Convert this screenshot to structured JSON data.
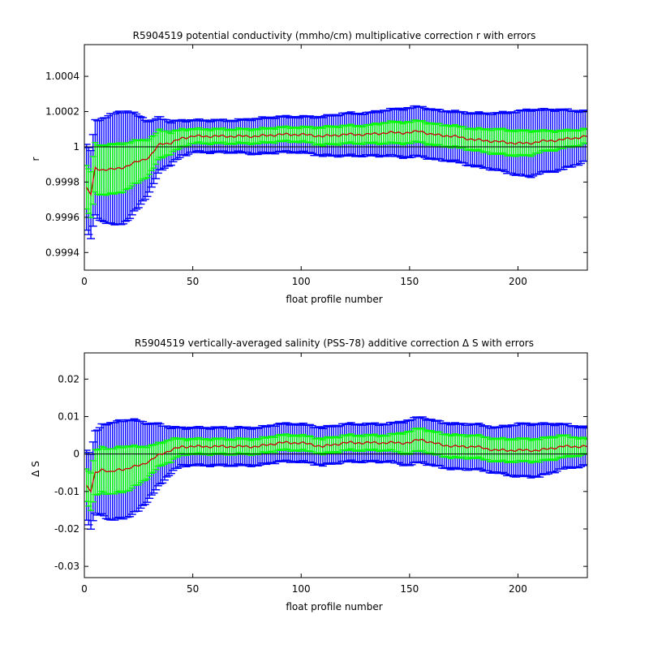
{
  "chart_data": [
    {
      "type": "line",
      "title": "R5904519 potential conductivity (mmho/cm) multiplicative correction r with errors",
      "xlabel": "float profile number",
      "ylabel": "r",
      "xlim": [
        0,
        232
      ],
      "ylim": [
        0.9993,
        1.00058
      ],
      "reference_line": 1,
      "x_ticks": [
        0,
        50,
        100,
        150,
        200
      ],
      "x_tick_labels": [
        "0",
        "50",
        "100",
        "150",
        "200"
      ],
      "y_ticks": [
        0.9994,
        0.9996,
        0.9998,
        1,
        1.0002,
        1.0004
      ],
      "y_tick_labels": [
        "0.9994",
        "0.9996",
        "0.9998",
        "1",
        "1.0002",
        "1.0004"
      ],
      "x_knots": [
        0,
        3,
        5,
        8,
        12,
        16,
        20,
        25,
        30,
        35,
        40,
        45,
        50,
        60,
        70,
        80,
        90,
        100,
        110,
        120,
        130,
        140,
        150,
        155,
        160,
        170,
        180,
        190,
        200,
        205,
        210,
        220,
        232
      ],
      "series": [
        {
          "role": "correction",
          "values": [
            0.99978,
            0.99973,
            0.99988,
            0.99987,
            0.99987,
            0.99988,
            0.99989,
            0.99992,
            0.99994,
            1.00002,
            1.00002,
            1.00005,
            1.00006,
            1.00006,
            1.00006,
            1.00006,
            1.00007,
            1.00007,
            1.00006,
            1.00007,
            1.00007,
            1.00008,
            1.00008,
            1.00009,
            1.00007,
            1.00006,
            1.00004,
            1.00003,
            1.00002,
            1.00002,
            1.00003,
            1.00004,
            1.00006
          ]
        },
        {
          "role": "inner error",
          "values": [
            0.00012,
            0.00013,
            0.00014,
            0.00014,
            0.00014,
            0.00014,
            0.00013,
            0.00012,
            0.0001,
            8e-05,
            6e-05,
            5e-05,
            4e-05,
            4e-05,
            4e-05,
            4e-05,
            4e-05,
            4e-05,
            5e-05,
            5e-05,
            5e-05,
            6e-05,
            6e-05,
            6e-05,
            6e-05,
            6e-05,
            6e-05,
            7e-05,
            7e-05,
            7e-05,
            6e-05,
            5e-05,
            4e-05
          ]
        },
        {
          "role": "outer error",
          "values": [
            0.00024,
            0.00025,
            0.00027,
            0.00029,
            0.00031,
            0.00032,
            0.00031,
            0.00026,
            0.0002,
            0.00015,
            0.00012,
            0.0001,
            9e-05,
            9e-05,
            9e-05,
            0.0001,
            0.0001,
            0.0001,
            0.00011,
            0.00012,
            0.00012,
            0.00013,
            0.00014,
            0.00014,
            0.00014,
            0.00014,
            0.00015,
            0.00016,
            0.00018,
            0.00019,
            0.00018,
            0.00017,
            0.00014
          ]
        }
      ]
    },
    {
      "type": "line",
      "title": "R5904519 vertically-averaged salinity (PSS-78) additive correction Δ S with errors",
      "xlabel": "float profile number",
      "ylabel": "Δ S",
      "xlim": [
        0,
        232
      ],
      "ylim": [
        -0.033,
        0.027
      ],
      "reference_line": 0,
      "x_ticks": [
        0,
        50,
        100,
        150,
        200
      ],
      "x_tick_labels": [
        "0",
        "50",
        "100",
        "150",
        "200"
      ],
      "y_ticks": [
        -0.03,
        -0.02,
        -0.01,
        0,
        0.01,
        0.02
      ],
      "y_tick_labels": [
        "-0.03",
        "-0.02",
        "-0.01",
        "0",
        "0.01",
        "0.02"
      ],
      "x_knots": [
        0,
        3,
        5,
        8,
        12,
        16,
        20,
        25,
        30,
        35,
        40,
        45,
        50,
        60,
        70,
        80,
        90,
        100,
        110,
        120,
        130,
        140,
        150,
        155,
        160,
        170,
        180,
        190,
        200,
        205,
        210,
        220,
        232
      ],
      "series": [
        {
          "role": "correction",
          "values": [
            -0.008,
            -0.01,
            -0.005,
            -0.004,
            -0.005,
            -0.004,
            -0.004,
            -0.003,
            -0.002,
            0.0,
            0.001,
            0.002,
            0.002,
            0.002,
            0.002,
            0.002,
            0.003,
            0.003,
            0.002,
            0.003,
            0.003,
            0.003,
            0.003,
            0.004,
            0.003,
            0.002,
            0.002,
            0.001,
            0.001,
            0.001,
            0.001,
            0.002,
            0.002
          ]
        },
        {
          "role": "inner error",
          "values": [
            0.004,
            0.005,
            0.006,
            0.006,
            0.006,
            0.006,
            0.006,
            0.005,
            0.004,
            0.003,
            0.003,
            0.002,
            0.002,
            0.002,
            0.002,
            0.002,
            0.002,
            0.002,
            0.002,
            0.002,
            0.002,
            0.002,
            0.003,
            0.003,
            0.003,
            0.003,
            0.003,
            0.003,
            0.003,
            0.003,
            0.003,
            0.003,
            0.002
          ]
        },
        {
          "role": "outer error",
          "values": [
            0.009,
            0.01,
            0.011,
            0.012,
            0.013,
            0.013,
            0.013,
            0.012,
            0.01,
            0.008,
            0.006,
            0.005,
            0.005,
            0.005,
            0.005,
            0.005,
            0.005,
            0.005,
            0.005,
            0.005,
            0.005,
            0.005,
            0.006,
            0.006,
            0.006,
            0.006,
            0.006,
            0.006,
            0.007,
            0.007,
            0.007,
            0.006,
            0.005
          ]
        }
      ]
    }
  ],
  "colors": {
    "outer_error": "#0000ff",
    "inner_error": "#00ff00",
    "correction": "#cc0000",
    "reference": "#000000",
    "axes": "#000000"
  }
}
